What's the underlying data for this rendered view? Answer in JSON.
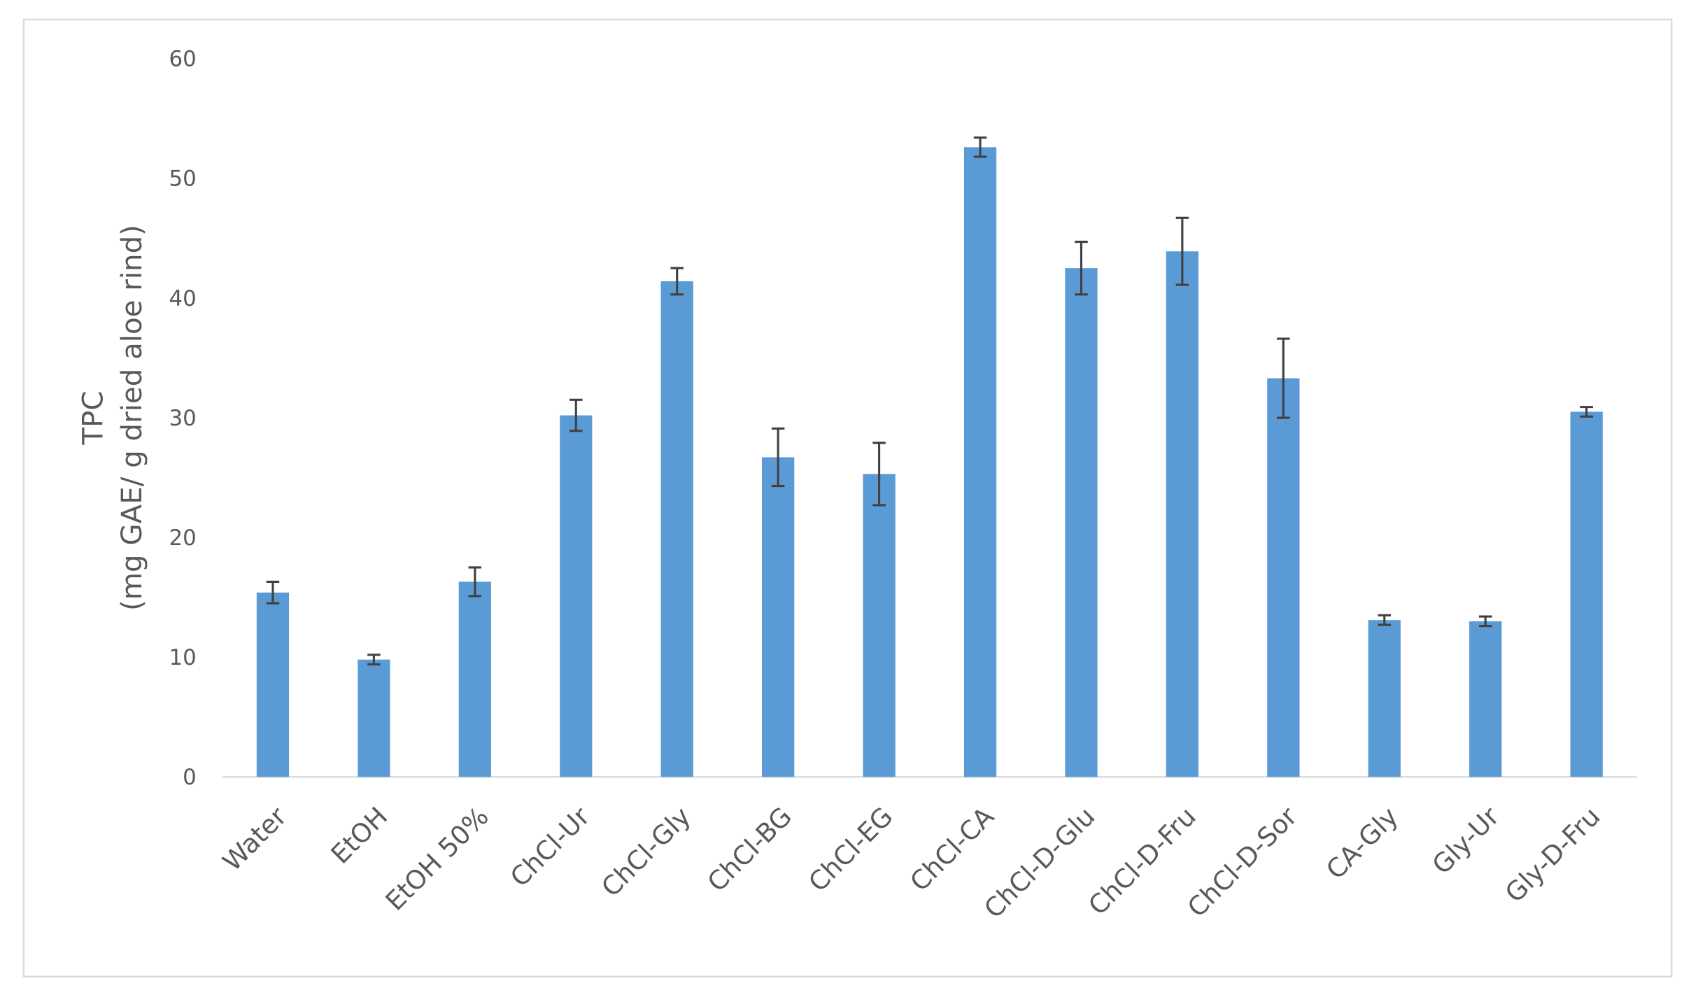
{
  "chart_data": {
    "type": "bar",
    "y_label_lines": [
      "TPC",
      "(mg GAE/ g dried aloe rind)"
    ],
    "categories": [
      "Water",
      "EtOH",
      "EtOH 50%",
      "ChCl-Ur",
      "ChCl-Gly",
      "ChCl-BG",
      "ChCl-EG",
      "ChCl-CA",
      "ChCl-D-Glu",
      "ChCl-D-Fru",
      "ChCl-D-Sor",
      "CA-Gly",
      "Gly-Ur",
      "Gly-D-Fru"
    ],
    "values": [
      15.4,
      9.8,
      16.3,
      30.2,
      41.4,
      26.7,
      25.3,
      52.6,
      42.5,
      43.9,
      33.3,
      13.1,
      13.0,
      30.5
    ],
    "errors": [
      0.9,
      0.4,
      1.2,
      1.3,
      1.1,
      2.4,
      2.6,
      0.8,
      2.2,
      2.8,
      3.3,
      0.4,
      0.4,
      0.4
    ],
    "color": "#5b9bd5",
    "error_color": "#404040",
    "ylim": [
      0,
      60
    ],
    "yticks": [
      0,
      10,
      20,
      30,
      40,
      50,
      60
    ],
    "grid": false
  }
}
